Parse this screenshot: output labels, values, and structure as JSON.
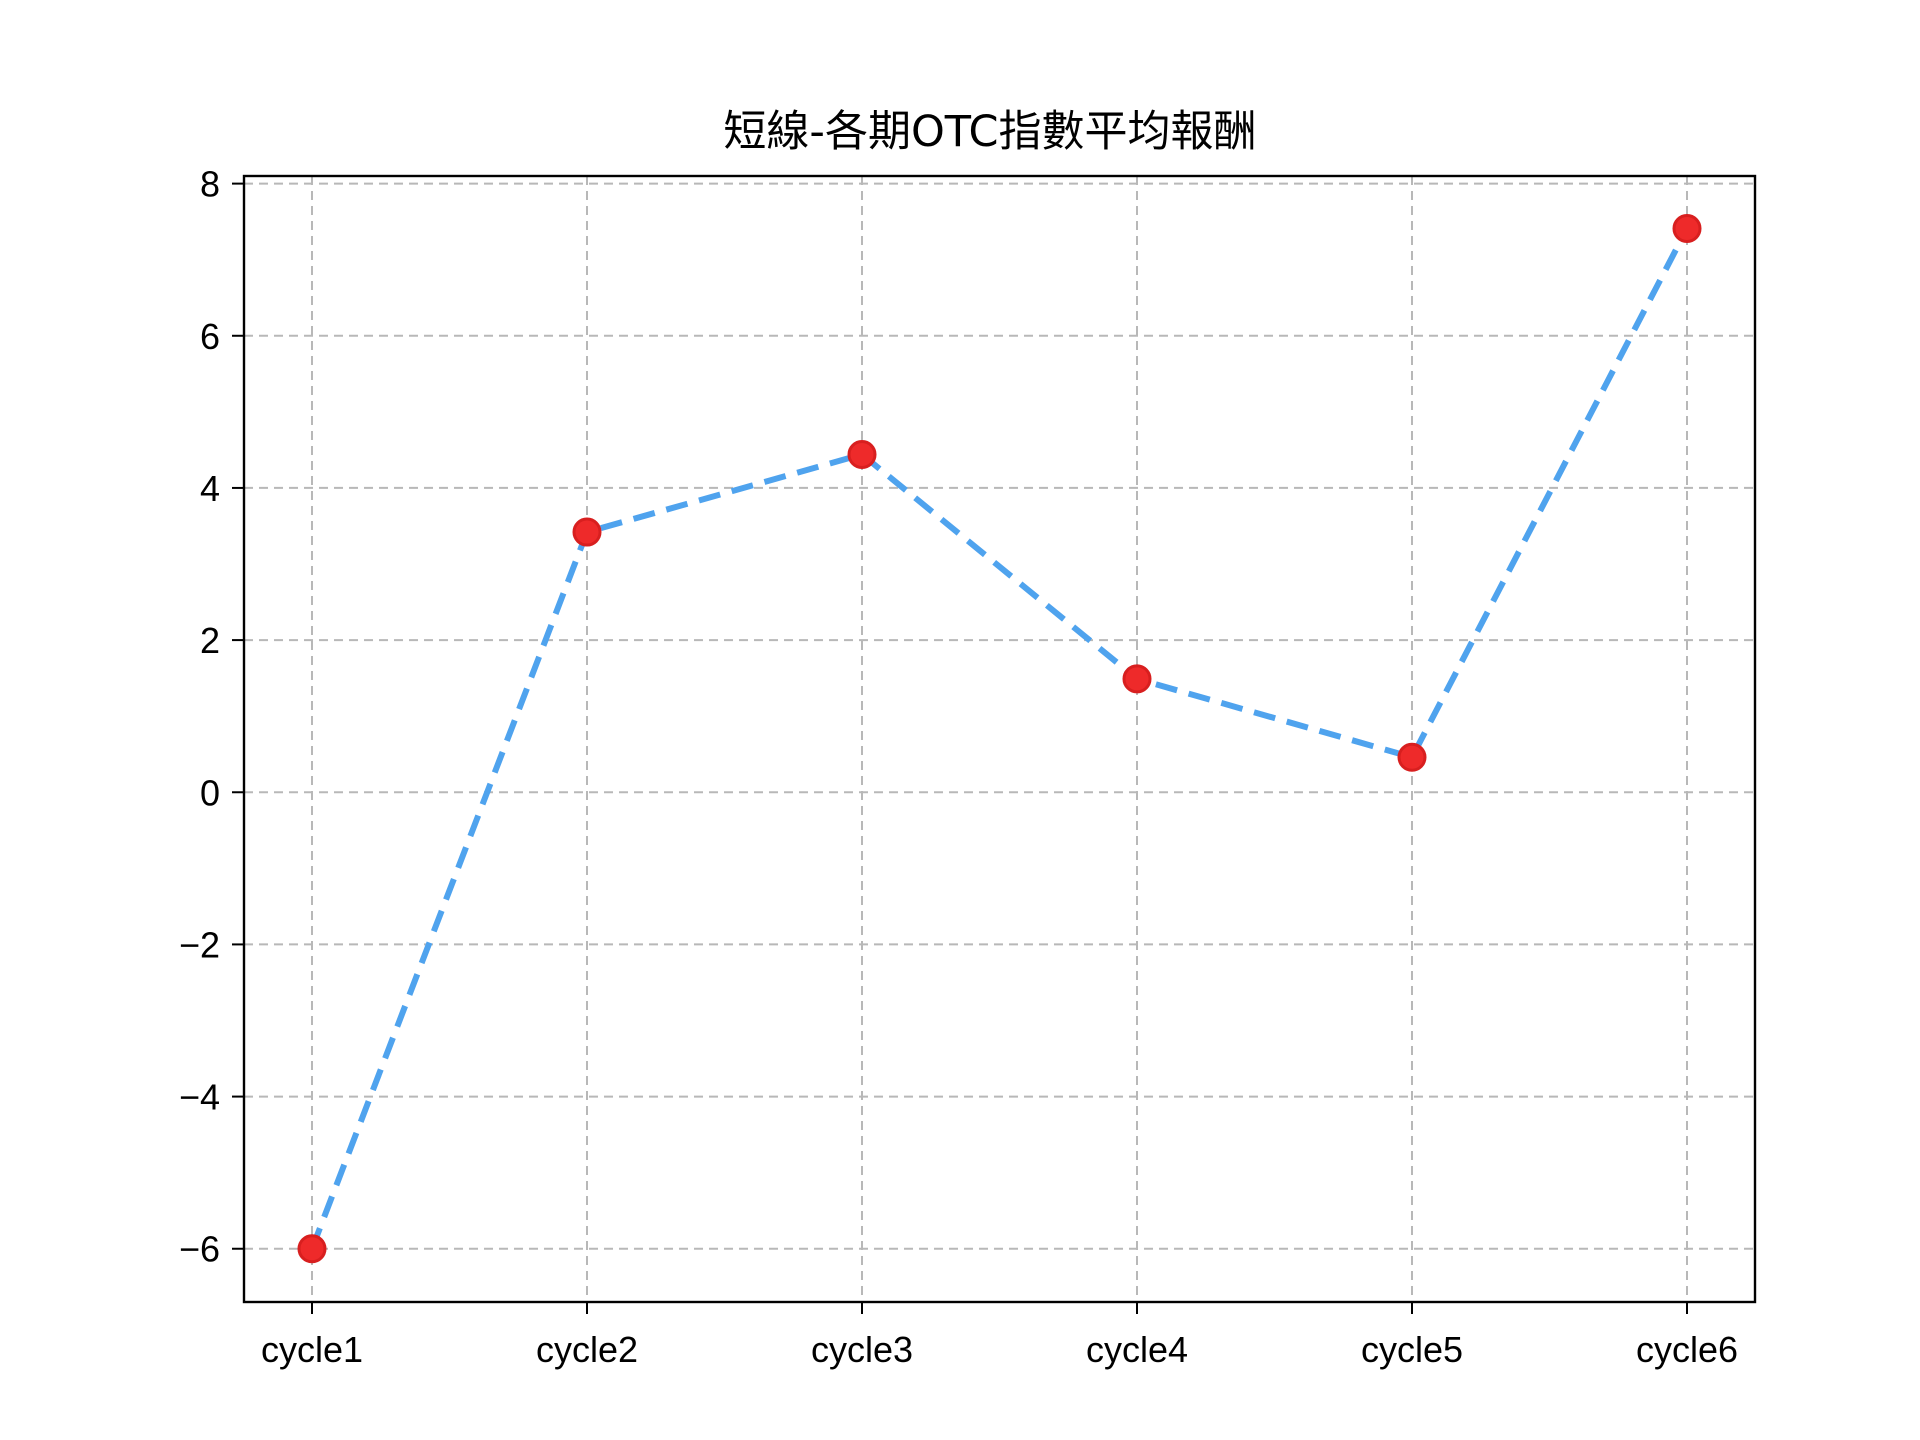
{
  "chart_data": {
    "type": "line",
    "title": "短線-各期OTC指數平均報酬",
    "xlabel": "",
    "ylabel": "",
    "categories": [
      "cycle1",
      "cycle2",
      "cycle3",
      "cycle4",
      "cycle5",
      "cycle6"
    ],
    "series": [
      {
        "values": [
          -6.0,
          3.42,
          4.44,
          1.49,
          0.46,
          7.41
        ]
      }
    ],
    "ylim": [
      -6.7,
      8.1
    ],
    "yticks": [
      -6,
      -4,
      -2,
      0,
      2,
      4,
      6,
      8
    ],
    "ytick_labels": [
      "−6",
      "−4",
      "−2",
      "0",
      "2",
      "4",
      "6",
      "8"
    ],
    "grid": true,
    "line_style": "dashed",
    "colors": {
      "line": "#4fa3ee",
      "marker_fill": "#ee2a2a",
      "marker_edge": "#d81f1f",
      "grid": "#b8b8b8",
      "frame": "#000000"
    }
  }
}
